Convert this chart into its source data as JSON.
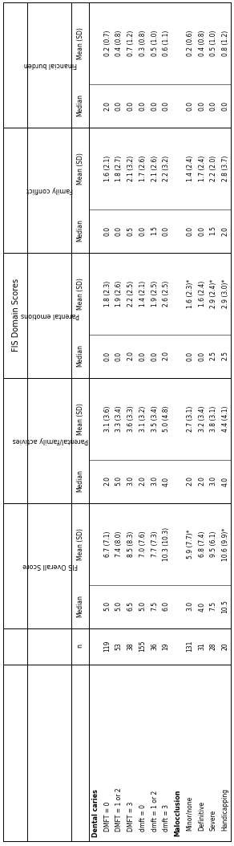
{
  "groups": [
    {
      "label": "Dental caries",
      "is_group_header": true
    },
    {
      "label": "DMFT = 0",
      "n": "119",
      "fis_med": "5.0",
      "fis_mean": "6.7 (7.1)",
      "par_med": "2.0",
      "par_mean": "3.1 (3.6)",
      "pe_med": "0.0",
      "pe_mean": "1.8 (2.3)",
      "fc_med": "0.0",
      "fc_mean": "1.6 (2.1)",
      "fb_med": "2.0",
      "fb_mean": "0.2 (0.7)"
    },
    {
      "label": "DMFT = 1 or 2",
      "n": "53",
      "fis_med": "5.0",
      "fis_mean": "7.4 (8.0)",
      "par_med": "5.0",
      "par_mean": "3.3 (3.4)",
      "pe_med": "0.0",
      "pe_mean": "1.9 (2.6)",
      "fc_med": "0.0",
      "fc_mean": "1.8 (2.7)",
      "fb_med": "0.0",
      "fb_mean": "0.4 (0.8)"
    },
    {
      "label": "DMFT = 3",
      "n": "38",
      "fis_med": "6.5",
      "fis_mean": "8.5 (8.3)",
      "par_med": "3.0",
      "par_mean": "3.6 (3.3)",
      "pe_med": "2.0",
      "pe_mean": "2.2 (2.5)",
      "fc_med": "0.5",
      "fc_mean": "2.1 (3.2)",
      "fb_med": "0.0",
      "fb_mean": "0.7 (1.2)"
    },
    {
      "label": "dmft = 0",
      "n": "155",
      "fis_med": "5.0",
      "fis_mean": "7.0 (7.6)",
      "par_med": "2.0",
      "par_mean": "3.1 (3.2)",
      "pe_med": "0.0",
      "pe_mean": "1.4 (2.1)",
      "fc_med": "0.0",
      "fc_mean": "1.7 (2.6)",
      "fb_med": "0.0",
      "fb_mean": "0.3 (0.8)"
    },
    {
      "label": "dmft = 1 or 2",
      "n": "36",
      "fis_med": "7.5",
      "fis_mean": "7.7 (7.3)",
      "par_med": "3.0",
      "par_mean": "3.5 (3.4)",
      "pe_med": "0.0",
      "pe_mean": "1.9 (2.5)",
      "fc_med": "1.5",
      "fc_mean": "2.1 (2.6)",
      "fb_med": "0.0",
      "fb_mean": "0.5 (1.0)"
    },
    {
      "label": "dmft = 3",
      "n": "19",
      "fis_med": "6.0",
      "fis_mean": "10.3 (10.3)",
      "par_med": "4.0",
      "par_mean": "5.0 (4.8)",
      "pe_med": "2.0",
      "pe_mean": "2.6 (2.5)",
      "fc_med": "0.0",
      "fc_mean": "2.2 (3.2)",
      "fb_med": "0.0",
      "fb_mean": "0.6 (1.1)"
    },
    {
      "label": "Malocclusion",
      "is_group_header": true
    },
    {
      "label": "Minor/none",
      "n": "131",
      "fis_med": "3.0",
      "fis_mean": "5.9 (7.7)*",
      "par_med": "2.0",
      "par_mean": "2.7 (3.1)",
      "pe_med": "0.0",
      "pe_mean": "1.6 (2.3)*",
      "fc_med": "0.0",
      "fc_mean": "1.4 (2.4)",
      "fb_med": "0.0",
      "fb_mean": "0.2 (0.6)"
    },
    {
      "label": "Definitive",
      "n": "31",
      "fis_med": "4.0",
      "fis_mean": "6.8 (7.4)",
      "par_med": "2.0",
      "par_mean": "3.2 (3.4)",
      "pe_med": "0.0",
      "pe_mean": "1.6 (2.4)",
      "fc_med": "0.0",
      "fc_mean": "1.7 (2.4)",
      "fb_med": "0.0",
      "fb_mean": "0.4 (0.8)"
    },
    {
      "label": "Severe",
      "n": "28",
      "fis_med": "7.5",
      "fis_mean": "9.5 (6.1)",
      "par_med": "3.0",
      "par_mean": "3.8 (3.1)",
      "pe_med": "2.5",
      "pe_mean": "2.9 (2.4)*",
      "fc_med": "1.5",
      "fc_mean": "2.2 (2.0)",
      "fb_med": "0.0",
      "fb_mean": "0.5 (1.0)"
    },
    {
      "label": "Handicapping",
      "n": "20",
      "fis_med": "10.5",
      "fis_mean": "10.6 (9.9)*",
      "par_med": "4.0",
      "par_mean": "4.4 (4.1)",
      "pe_med": "2.5",
      "pe_mean": "2.9 (3.0)*",
      "fc_med": "2.0",
      "fc_mean": "2.8 (3.7)",
      "fb_med": "0.0",
      "fb_mean": "0.8 (1.2)"
    }
  ],
  "bg_color": "#ffffff",
  "text_color": "#000000",
  "line_color": "#000000"
}
